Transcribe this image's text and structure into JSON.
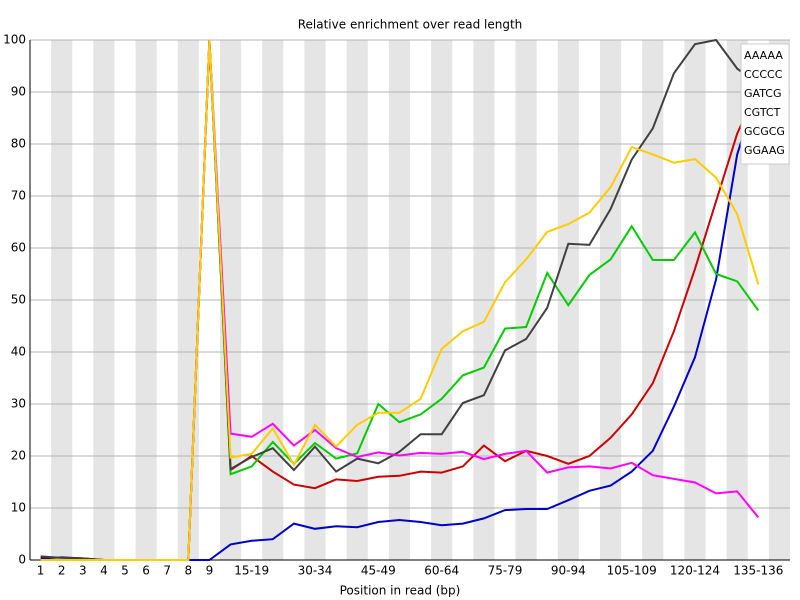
{
  "chart_data": {
    "type": "line",
    "title": "Relative enrichment over read length",
    "x_label": "Position in read (bp)",
    "categories": [
      "1",
      "2",
      "3",
      "4",
      "5",
      "6",
      "7",
      "8",
      "9",
      null,
      "15-19",
      null,
      null,
      "30-34",
      null,
      null,
      "45-49",
      null,
      null,
      "60-64",
      null,
      null,
      "75-79",
      null,
      null,
      "90-94",
      null,
      null,
      "105-109",
      null,
      null,
      "120-124",
      null,
      null,
      "135-136"
    ],
    "ylim": [
      0,
      100
    ],
    "yticks": [
      0,
      10,
      20,
      30,
      40,
      50,
      60,
      70,
      80,
      90,
      100
    ],
    "grid": true,
    "legend": "upper right",
    "series": [
      {
        "name": "AAAAA",
        "color": "#cc0000",
        "values": [
          0,
          0,
          0,
          0,
          0,
          0,
          0,
          0,
          100,
          17.3,
          20,
          17,
          14.5,
          13.8,
          15.5,
          15.2,
          16,
          16.2,
          17,
          16.8,
          18,
          22,
          19,
          21,
          20,
          18.5,
          20,
          23.5,
          28,
          34,
          44,
          56,
          69,
          82,
          91
        ]
      },
      {
        "name": "CCCCC",
        "color": "#0000cc",
        "values": [
          0.3,
          0.5,
          0.3,
          0,
          0,
          0,
          0,
          0,
          0,
          3,
          3.7,
          4,
          7,
          6,
          6.5,
          6.3,
          7.3,
          7.7,
          7.3,
          6.7,
          7,
          8,
          9.6,
          9.8,
          9.8,
          11.5,
          13.3,
          14.3,
          17,
          21,
          29.5,
          39,
          54,
          78,
          91
        ]
      },
      {
        "name": "GATCG",
        "color": "#00cc00",
        "values": [
          0,
          0,
          0,
          0,
          0,
          0,
          0,
          0,
          100,
          16.5,
          18,
          22.7,
          18.5,
          22.5,
          19.5,
          20.5,
          30,
          26.5,
          28,
          31,
          35.5,
          37,
          44.5,
          44.8,
          55.2,
          49,
          54.8,
          57.8,
          64.2,
          57.7,
          57.7,
          63,
          55,
          53.6,
          48
        ]
      },
      {
        "name": "CGTCT",
        "color": "#404040",
        "values": [
          0.7,
          0.4,
          0.3,
          0,
          0,
          0,
          0,
          0,
          100,
          17.5,
          19.8,
          21.5,
          17.3,
          21.8,
          17,
          19.5,
          18.6,
          20.8,
          24.2,
          24.2,
          30.2,
          31.7,
          40.3,
          42.5,
          48.5,
          60.8,
          60.6,
          67.5,
          77,
          83,
          93.6,
          99.2,
          100,
          94.5,
          91.5
        ]
      },
      {
        "name": "GCGCG",
        "color": "#ff00ff",
        "values": [
          0,
          0,
          0,
          0,
          0,
          0,
          0,
          0,
          100,
          24.3,
          23.7,
          26.2,
          22,
          25,
          21.5,
          19.8,
          20.7,
          20.1,
          20.6,
          20.4,
          20.8,
          19.4,
          20.4,
          21,
          16.8,
          17.8,
          18,
          17.6,
          18.7,
          16.3,
          15.6,
          14.9,
          12.8,
          13.2,
          8.2
        ]
      },
      {
        "name": "GGAAG",
        "color": "#ffcc00",
        "values": [
          0,
          0,
          0,
          0,
          0,
          0,
          0,
          0,
          100,
          19.7,
          20.4,
          25.3,
          18.3,
          26,
          21.8,
          26,
          28.3,
          28.3,
          31,
          40.6,
          44,
          45.8,
          53.4,
          57.8,
          63.1,
          64.6,
          66.8,
          71.7,
          79.4,
          78,
          76.4,
          77.1,
          73.5,
          66.5,
          53
        ]
      }
    ]
  }
}
